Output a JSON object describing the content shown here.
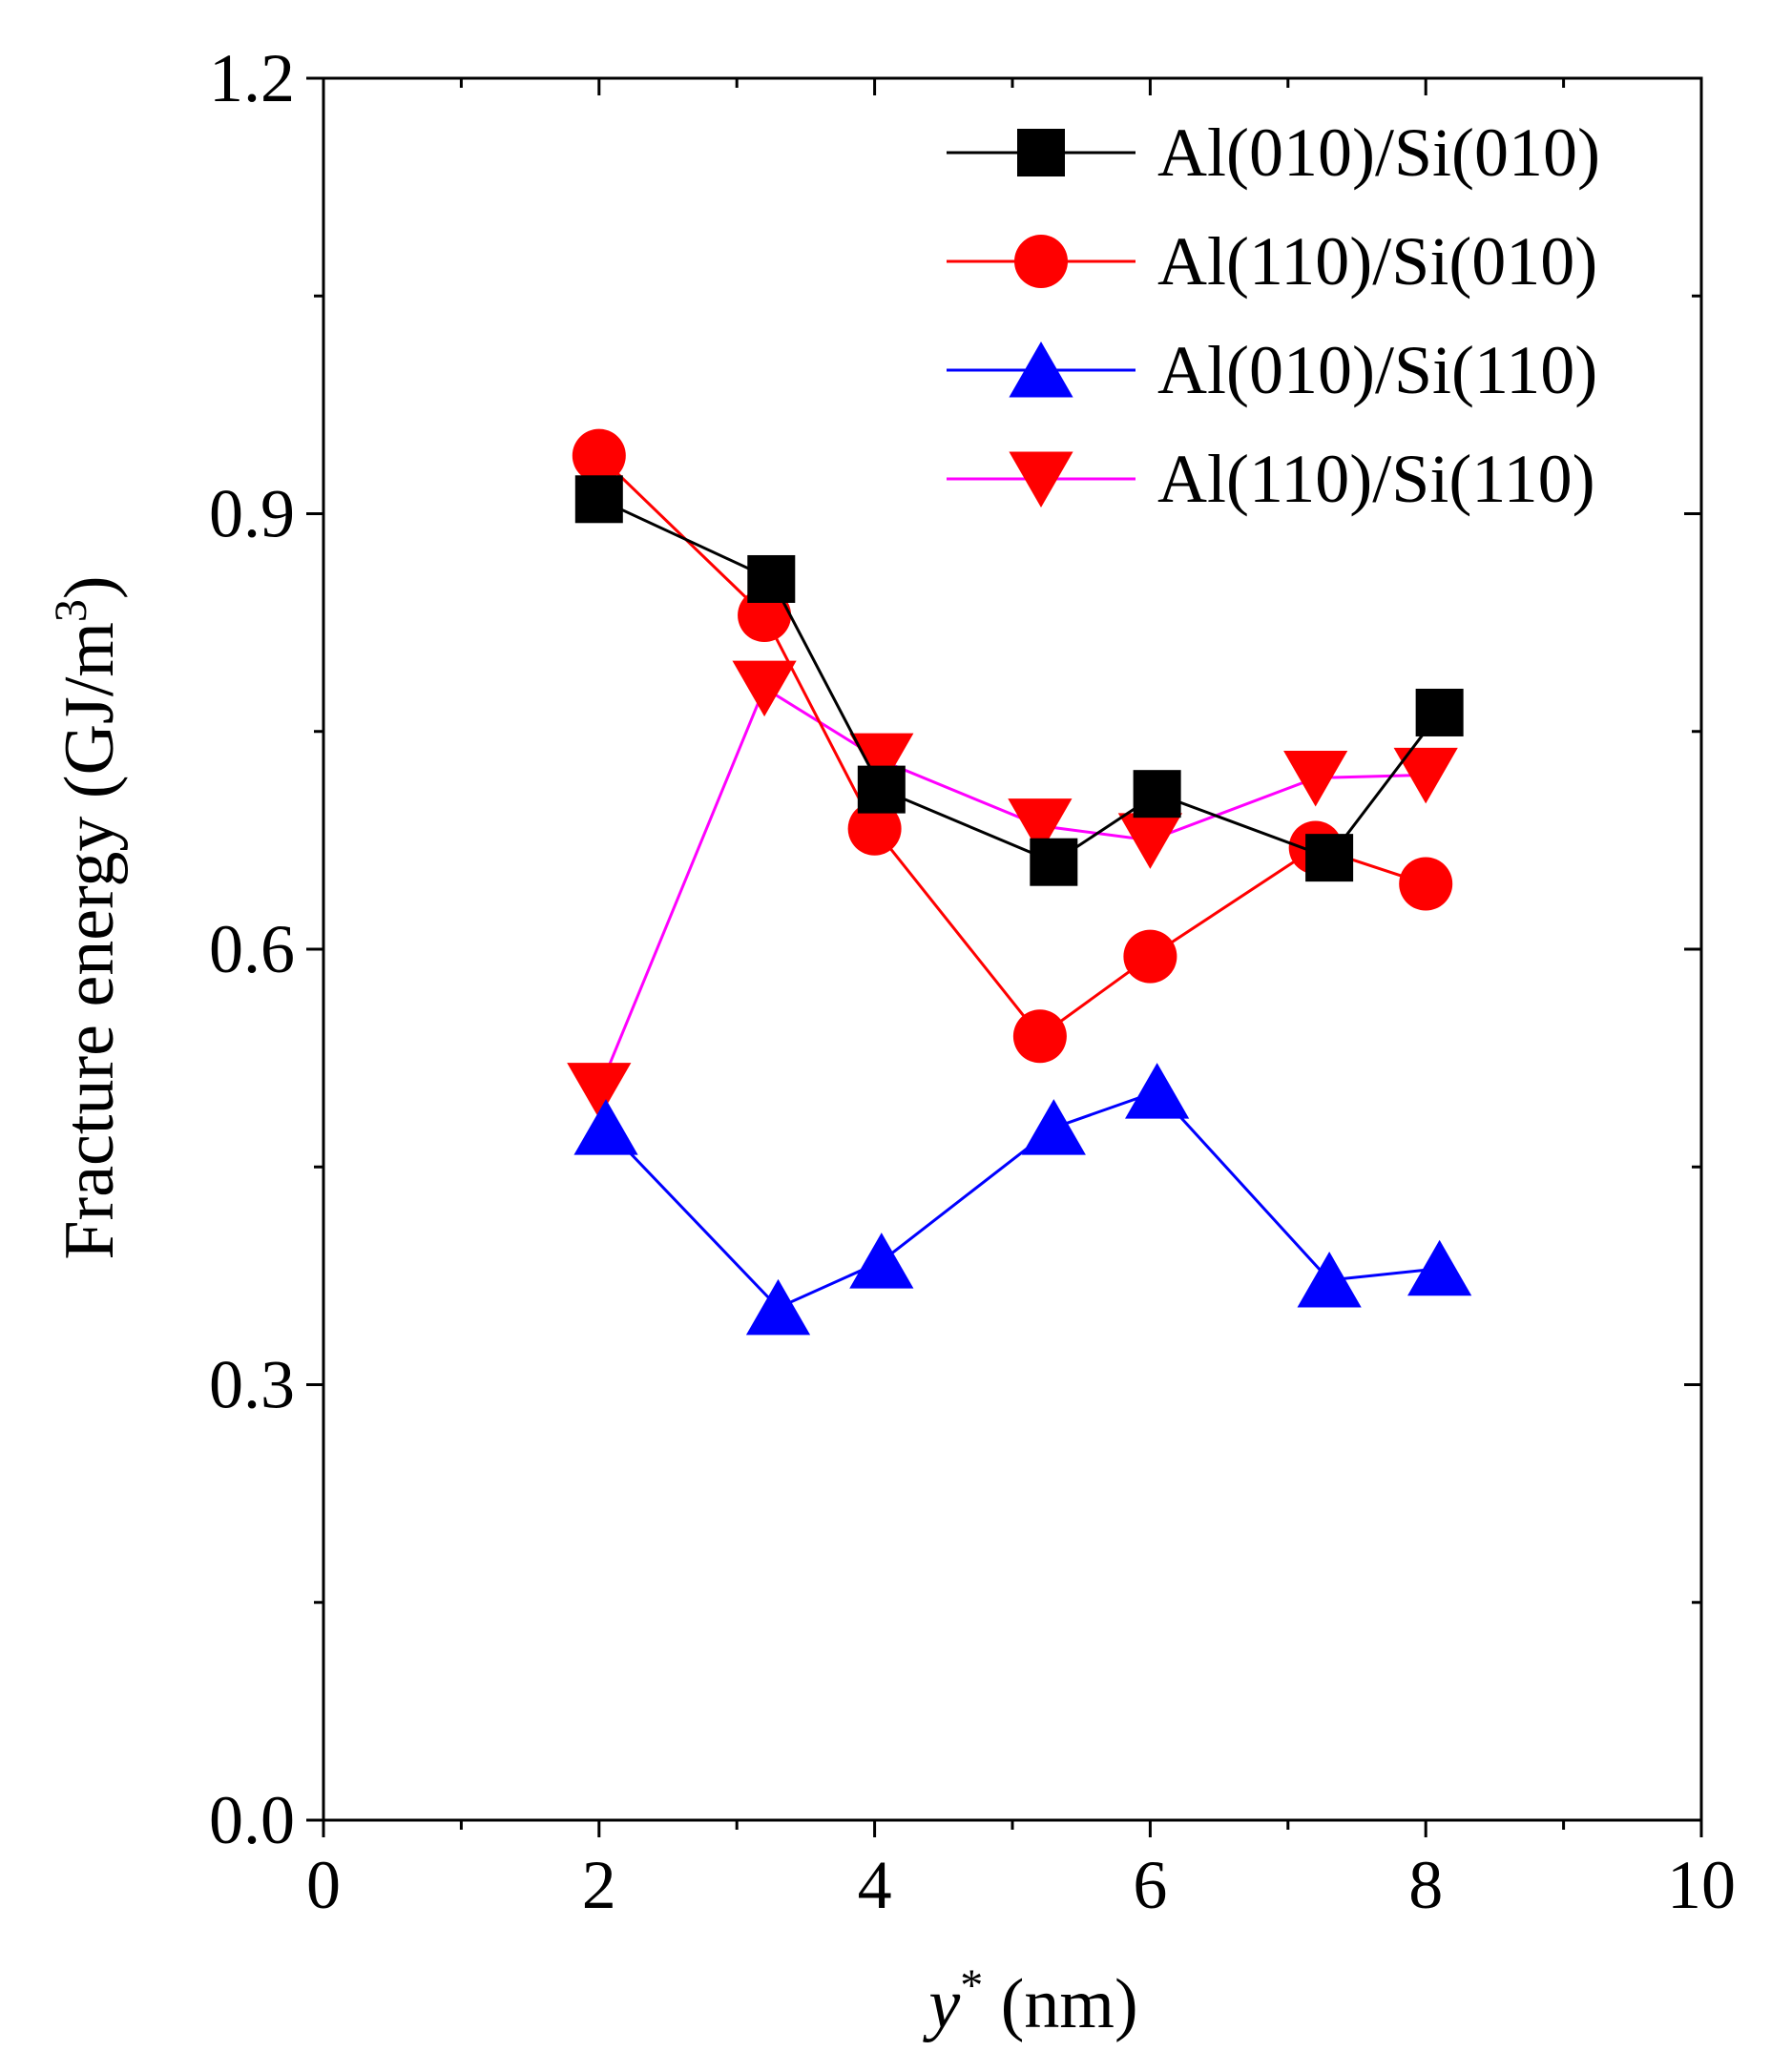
{
  "chart_data": {
    "type": "line",
    "xlabel": {
      "var": "y",
      "sup": "*",
      "unit": " (nm)"
    },
    "ylabel": {
      "main": "Fracture energy (GJ/m",
      "sup": "3",
      "close": ")"
    },
    "xlim": [
      0,
      10
    ],
    "ylim": [
      0,
      1.2
    ],
    "xticks": [
      "0",
      "2",
      "4",
      "6",
      "8",
      "10"
    ],
    "yticks": [
      "0.0",
      "0.3",
      "0.6",
      "0.9",
      "1.2"
    ],
    "grid": false,
    "legend_position": "top-right",
    "series": [
      {
        "name": "Al(010)/Si(010)",
        "color": "#000000",
        "marker": "square",
        "x": [
          2.0,
          3.25,
          4.05,
          5.3,
          6.05,
          7.3,
          8.1
        ],
        "y": [
          0.91,
          0.855,
          0.71,
          0.66,
          0.707,
          0.663,
          0.763
        ]
      },
      {
        "name": "Al(110)/Si(010)",
        "color": "#ff0000",
        "marker": "circle",
        "x": [
          2.0,
          3.2,
          4.0,
          5.2,
          6.0,
          7.2,
          8.0
        ],
        "y": [
          0.94,
          0.83,
          0.683,
          0.54,
          0.595,
          0.67,
          0.645
        ]
      },
      {
        "name": "Al(010)/Si(110)",
        "color": "#0000ff",
        "marker": "triangle-up",
        "x": [
          2.05,
          3.3,
          4.05,
          5.3,
          6.05,
          7.3,
          8.1
        ],
        "y": [
          0.477,
          0.353,
          0.385,
          0.477,
          0.502,
          0.372,
          0.38
        ]
      },
      {
        "name": "Al(110)/Si(110)",
        "color": "#ff00ff",
        "marker_color": "#ff0000",
        "marker": "triangle-down",
        "x": [
          2.0,
          3.2,
          4.05,
          5.2,
          6.0,
          7.2,
          8.0
        ],
        "y": [
          0.503,
          0.78,
          0.73,
          0.685,
          0.675,
          0.718,
          0.72
        ]
      }
    ]
  }
}
